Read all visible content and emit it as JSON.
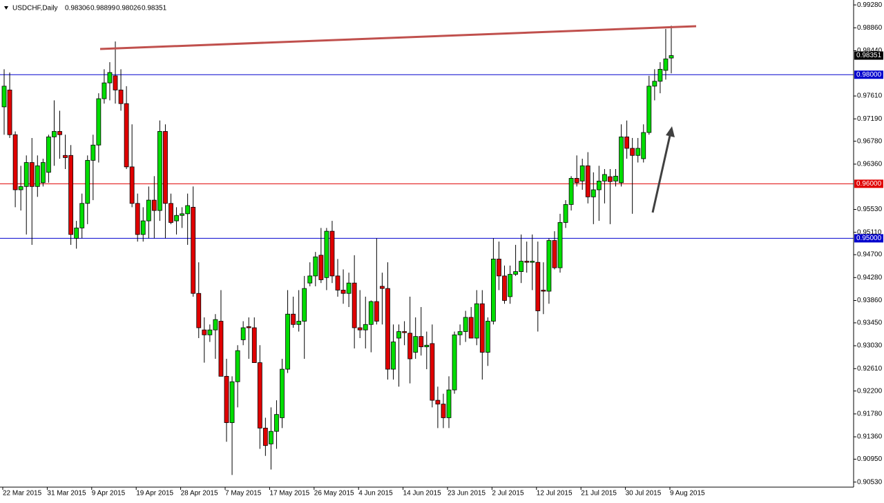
{
  "chart_data": {
    "type": "candlestick",
    "title": "USDCHF,Daily",
    "categories": [
      "22 Mar 2015",
      null,
      null,
      null,
      null,
      null,
      null,
      null,
      "31 Mar 2015",
      null,
      null,
      null,
      null,
      null,
      null,
      null,
      "9 Apr 2015",
      null,
      null,
      null,
      null,
      null,
      null,
      null,
      "19 Apr 2015",
      null,
      null,
      null,
      null,
      null,
      null,
      null,
      "28 Apr 2015",
      null,
      null,
      null,
      null,
      null,
      null,
      null,
      "7 May 2015",
      null,
      null,
      null,
      null,
      null,
      null,
      null,
      "17 May 2015",
      null,
      null,
      null,
      null,
      null,
      null,
      null,
      "26 May 2015",
      null,
      null,
      null,
      null,
      null,
      null,
      null,
      "4 Jun 2015",
      null,
      null,
      null,
      null,
      null,
      null,
      null,
      "14 Jun 2015",
      null,
      null,
      null,
      null,
      null,
      null,
      null,
      "23 Jun 2015",
      null,
      null,
      null,
      null,
      null,
      null,
      null,
      "2 Jul 2015",
      null,
      null,
      null,
      null,
      null,
      null,
      null,
      "12 Jul 2015",
      null,
      null,
      null,
      null,
      null,
      null,
      null,
      "21 Jul 2015",
      null,
      null,
      null,
      null,
      null,
      null,
      null,
      "30 Jul 2015",
      null,
      null,
      null,
      null,
      null,
      null,
      null,
      "9 Aug 2015"
    ],
    "open": [
      0.9741,
      0.9772,
      0.969,
      0.9589,
      0.9595,
      0.9639,
      0.9595,
      0.9602,
      0.9621,
      0.9686,
      0.9696,
      0.9652,
      0.9652,
      0.95,
      0.9519,
      0.9564,
      0.9643,
      0.9671,
      0.9756,
      0.9785,
      0.9798,
      0.9772,
      0.9747,
      0.9631,
      0.9564,
      0.9507,
      0.9532,
      0.957,
      0.9551,
      0.9696,
      0.9564,
      0.9532,
      0.9542,
      0.9545,
      0.9557,
      0.9399,
      0.9332,
      0.9323,
      0.9332,
      0.9348,
      0.9247,
      0.9162,
      0.9237,
      0.9314,
      0.9338,
      0.9336,
      0.9272,
      0.9152,
      0.9123,
      0.9146,
      0.9171,
      0.926,
      0.9361,
      0.9342,
      0.9348,
      0.9418,
      0.9431,
      0.9469,
      0.9428,
      0.9513,
      0.9431,
      0.9405,
      0.9399,
      0.9418,
      0.9336,
      0.9332,
      0.9342,
      0.9384,
      0.9412,
      0.9408,
      0.926,
      0.9317,
      0.9329,
      0.9326,
      0.9291,
      0.932,
      0.9301,
      0.9307,
      0.9203,
      0.9196,
      0.9171,
      0.9222,
      0.9323,
      0.9329,
      0.9355,
      0.9317,
      0.938,
      0.9291,
      0.9348,
      0.9462,
      0.9431,
      0.9393,
      0.9434,
      0.9439,
      0.9458,
      0.9456,
      0.9456,
      0.9405,
      0.9403,
      0.9496,
      0.9446,
      0.9529,
      0.9562,
      0.961,
      0.9605,
      0.9633,
      0.9576,
      0.9589,
      0.9605,
      0.9613,
      0.9605,
      0.9602,
      0.9686,
      0.9665,
      0.9652,
      0.9646,
      0.9694,
      0.9779,
      0.9788,
      0.9808,
      0.98306
    ],
    "high": [
      0.981,
      0.9804,
      0.9696,
      0.9633,
      0.9652,
      0.9684,
      0.9652,
      0.9646,
      0.969,
      0.9753,
      0.9734,
      0.969,
      0.9671,
      0.9532,
      0.9582,
      0.9652,
      0.969,
      0.9766,
      0.981,
      0.9823,
      0.9861,
      0.981,
      0.9779,
      0.9709,
      0.9582,
      0.9557,
      0.9595,
      0.9614,
      0.9716,
      0.9709,
      0.9582,
      0.9557,
      0.9557,
      0.9582,
      0.9595,
      0.9456,
      0.9355,
      0.9342,
      0.9361,
      0.9405,
      0.9279,
      0.9247,
      0.9304,
      0.9348,
      0.9355,
      0.9355,
      0.9304,
      0.9171,
      0.919,
      0.9203,
      0.9279,
      0.9405,
      0.9393,
      0.9405,
      0.9431,
      0.9456,
      0.9475,
      0.9519,
      0.9519,
      0.9532,
      0.9462,
      0.9443,
      0.9437,
      0.9469,
      0.9405,
      0.9393,
      0.9386,
      0.95,
      0.9437,
      0.9456,
      0.9342,
      0.9342,
      0.9348,
      0.9393,
      0.9355,
      0.9374,
      0.9329,
      0.9342,
      0.9228,
      0.9215,
      0.9247,
      0.9329,
      0.9342,
      0.9367,
      0.9374,
      0.9405,
      0.9405,
      0.9355,
      0.95,
      0.9494,
      0.945,
      0.945,
      0.9488,
      0.9507,
      0.9494,
      0.9507,
      0.9494,
      0.9456,
      0.95,
      0.9513,
      0.9545,
      0.957,
      0.9614,
      0.9652,
      0.9646,
      0.9658,
      0.9621,
      0.9633,
      0.9627,
      0.9627,
      0.9627,
      0.9709,
      0.9716,
      0.9684,
      0.9684,
      0.9709,
      0.9798,
      0.981,
      0.9823,
      0.9884,
      0.98899
    ],
    "low": [
      0.969,
      0.9684,
      0.9557,
      0.9551,
      0.9507,
      0.9488,
      0.9576,
      0.9595,
      0.9602,
      0.9633,
      0.9646,
      0.9627,
      0.9488,
      0.9481,
      0.95,
      0.9526,
      0.957,
      0.9639,
      0.9747,
      0.9753,
      0.9747,
      0.9734,
      0.9627,
      0.9557,
      0.9494,
      0.9494,
      0.95,
      0.95,
      0.9532,
      0.95,
      0.9526,
      0.9507,
      0.9519,
      0.9488,
      0.9393,
      0.9317,
      0.9272,
      0.931,
      0.9279,
      0.9247,
      0.9127,
      0.9066,
      0.919,
      0.9304,
      0.9279,
      0.9272,
      0.9114,
      0.9101,
      0.9076,
      0.9114,
      0.9152,
      0.9253,
      0.9336,
      0.9329,
      0.9279,
      0.9412,
      0.9412,
      0.9418,
      0.9405,
      0.9418,
      0.9393,
      0.938,
      0.9374,
      0.9298,
      0.9317,
      0.9298,
      0.9291,
      0.9342,
      0.9342,
      0.9241,
      0.9241,
      0.9228,
      0.9304,
      0.9234,
      0.9279,
      0.9285,
      0.926,
      0.919,
      0.9152,
      0.9152,
      0.9152,
      0.9215,
      0.9304,
      0.931,
      0.9317,
      0.9304,
      0.9241,
      0.9266,
      0.9342,
      0.9405,
      0.938,
      0.938,
      0.9431,
      0.9418,
      0.9437,
      0.9405,
      0.9329,
      0.9361,
      0.938,
      0.9443,
      0.9437,
      0.9519,
      0.9551,
      0.9595,
      0.9589,
      0.9564,
      0.9526,
      0.9532,
      0.9564,
      0.9526,
      0.9595,
      0.9595,
      0.9646,
      0.9545,
      0.9639,
      0.9639,
      0.969,
      0.9753,
      0.9766,
      0.9791,
      0.98026
    ],
    "close": [
      0.9779,
      0.969,
      0.9589,
      0.9595,
      0.9639,
      0.9595,
      0.9633,
      0.9639,
      0.9686,
      0.9696,
      0.969,
      0.9648,
      0.9507,
      0.9519,
      0.9564,
      0.9643,
      0.9671,
      0.9756,
      0.9785,
      0.9804,
      0.9772,
      0.9747,
      0.9631,
      0.9564,
      0.9507,
      0.9532,
      0.957,
      0.9551,
      0.9696,
      0.9564,
      0.9529,
      0.9542,
      0.9545,
      0.956,
      0.9399,
      0.9336,
      0.9323,
      0.9332,
      0.9351,
      0.9247,
      0.9162,
      0.9237,
      0.9294,
      0.9336,
      0.9336,
      0.9272,
      0.9152,
      0.912,
      0.9146,
      0.9177,
      0.926,
      0.9361,
      0.9342,
      0.9348,
      0.9408,
      0.9431,
      0.9466,
      0.9424,
      0.9513,
      0.9431,
      0.9405,
      0.9399,
      0.9418,
      0.9336,
      0.9332,
      0.9342,
      0.9384,
      0.9348,
      0.9408,
      0.926,
      0.931,
      0.9329,
      0.9327,
      0.9279,
      0.932,
      0.9301,
      0.9304,
      0.9203,
      0.9196,
      0.9171,
      0.9222,
      0.9323,
      0.9329,
      0.9355,
      0.9317,
      0.938,
      0.9291,
      0.9348,
      0.9462,
      0.9431,
      0.9386,
      0.9434,
      0.9439,
      0.9458,
      0.9456,
      0.9458,
      0.9367,
      0.9403,
      0.9496,
      0.9446,
      0.9529,
      0.9562,
      0.961,
      0.9602,
      0.9633,
      0.9576,
      0.9589,
      0.9605,
      0.9617,
      0.9604,
      0.9614,
      0.9686,
      0.9665,
      0.9652,
      0.9665,
      0.9694,
      0.9779,
      0.9788,
      0.981,
      0.9829,
      0.98351
    ],
    "up_color": "#00dd00",
    "down_color": "#e00000",
    "ylim": [
      0.9045,
      0.9937
    ],
    "yticks": [
      {
        "value": 0.9928,
        "label": "0.99280"
      },
      {
        "value": 0.9886,
        "label": "0.98860"
      },
      {
        "value": 0.9844,
        "label": "0.98440"
      },
      {
        "value": 0.9761,
        "label": "0.97610"
      },
      {
        "value": 0.9719,
        "label": "0.97190"
      },
      {
        "value": 0.9678,
        "label": "0.96780"
      },
      {
        "value": 0.9636,
        "label": "0.96360"
      },
      {
        "value": 0.9553,
        "label": "0.95530"
      },
      {
        "value": 0.9511,
        "label": "0.95110"
      },
      {
        "value": 0.947,
        "label": "0.94700"
      },
      {
        "value": 0.9428,
        "label": "0.94280"
      },
      {
        "value": 0.9386,
        "label": "0.93860"
      },
      {
        "value": 0.9345,
        "label": "0.93450"
      },
      {
        "value": 0.9303,
        "label": "0.93030"
      },
      {
        "value": 0.9261,
        "label": "0.92610"
      },
      {
        "value": 0.922,
        "label": "0.92200"
      },
      {
        "value": 0.9178,
        "label": "0.91780"
      },
      {
        "value": 0.9136,
        "label": "0.91360"
      },
      {
        "value": 0.9095,
        "label": "0.90950"
      },
      {
        "value": 0.9053,
        "label": "0.90530"
      }
    ],
    "levels": [
      {
        "value": 0.98,
        "label": "0.98000",
        "color": "#0000cd"
      },
      {
        "value": 0.96,
        "label": "0.96000",
        "color": "#e00000"
      },
      {
        "value": 0.95,
        "label": "0.95000",
        "color": "#0000cd"
      }
    ]
  }
}
